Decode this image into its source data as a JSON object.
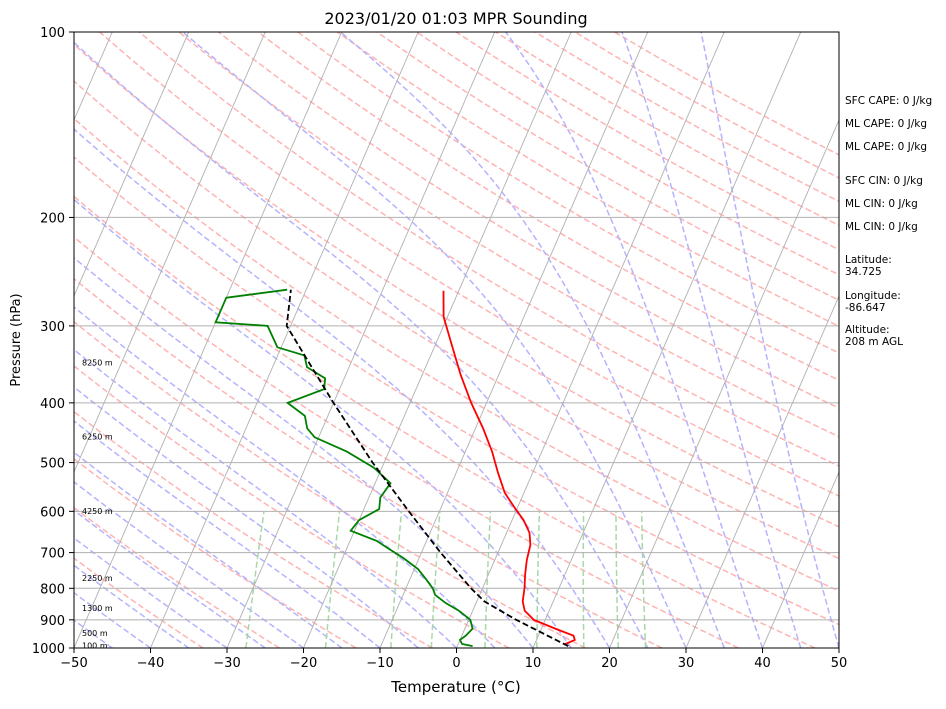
{
  "chart_data": {
    "type": "skew-t",
    "title": "2023/01/20 01:03 MPR Sounding",
    "xlabel": "Temperature (°C)",
    "ylabel": "Pressure (hPa)",
    "xlim": [
      -50,
      50
    ],
    "ylim": [
      1000,
      100
    ],
    "y_scale": "log",
    "grid": true,
    "x_ticks": [
      "−50",
      "−40",
      "−30",
      "−20",
      "−10",
      "0",
      "10",
      "20",
      "30",
      "40",
      "50"
    ],
    "x_tick_values": [
      -50,
      -40,
      -30,
      -20,
      -10,
      0,
      10,
      20,
      30,
      40,
      50
    ],
    "y_ticks": [
      "100",
      "200",
      "300",
      "400",
      "500",
      "600",
      "700",
      "800",
      "900",
      "1000"
    ],
    "y_tick_values": [
      100,
      200,
      300,
      400,
      500,
      600,
      700,
      800,
      900,
      1000
    ],
    "background_lines": {
      "isotherms_color": "#b0b0b0",
      "dry_adiabats_color": "#ffb3b3",
      "moist_adiabats_color": "#b3b3ff",
      "mixing_ratio_color": "#a8d8a8"
    },
    "series": [
      {
        "color": "#ff0000",
        "points": [
          {
            "p": 993,
            "t": 14.5
          },
          {
            "p": 985,
            "t": 14.0
          },
          {
            "p": 970,
            "t": 15.0
          },
          {
            "p": 955,
            "t": 14.6
          },
          {
            "p": 930,
            "t": 11.8
          },
          {
            "p": 900,
            "t": 8.5
          },
          {
            "p": 870,
            "t": 6.8
          },
          {
            "p": 840,
            "t": 6.0
          },
          {
            "p": 800,
            "t": 5.5
          },
          {
            "p": 760,
            "t": 4.8
          },
          {
            "p": 720,
            "t": 4.2
          },
          {
            "p": 680,
            "t": 3.8
          },
          {
            "p": 650,
            "t": 3.0
          },
          {
            "p": 620,
            "t": 1.5
          },
          {
            "p": 590,
            "t": -0.5
          },
          {
            "p": 560,
            "t": -2.5
          },
          {
            "p": 520,
            "t": -4.5
          },
          {
            "p": 480,
            "t": -6.5
          },
          {
            "p": 440,
            "t": -9.0
          },
          {
            "p": 400,
            "t": -12.0
          },
          {
            "p": 360,
            "t": -15.0
          },
          {
            "p": 320,
            "t": -18.0
          },
          {
            "p": 290,
            "t": -20.5
          },
          {
            "p": 263,
            "t": -22.0
          }
        ]
      },
      {
        "color": "#008000",
        "points": [
          {
            "p": 993,
            "t": 2.0
          },
          {
            "p": 985,
            "t": 0.5
          },
          {
            "p": 970,
            "t": 0.0
          },
          {
            "p": 955,
            "t": 0.5
          },
          {
            "p": 930,
            "t": 1.0
          },
          {
            "p": 900,
            "t": 0.2
          },
          {
            "p": 870,
            "t": -1.8
          },
          {
            "p": 845,
            "t": -4.0
          },
          {
            "p": 820,
            "t": -5.8
          },
          {
            "p": 800,
            "t": -6.5
          },
          {
            "p": 775,
            "t": -7.8
          },
          {
            "p": 745,
            "t": -9.5
          },
          {
            "p": 715,
            "t": -12.0
          },
          {
            "p": 690,
            "t": -14.5
          },
          {
            "p": 670,
            "t": -16.5
          },
          {
            "p": 645,
            "t": -20.5
          },
          {
            "p": 620,
            "t": -20.0
          },
          {
            "p": 595,
            "t": -18.0
          },
          {
            "p": 570,
            "t": -18.5
          },
          {
            "p": 540,
            "t": -18.0
          },
          {
            "p": 510,
            "t": -21.0
          },
          {
            "p": 480,
            "t": -25.5
          },
          {
            "p": 455,
            "t": -30.5
          },
          {
            "p": 440,
            "t": -32.0
          },
          {
            "p": 420,
            "t": -33.0
          },
          {
            "p": 400,
            "t": -36.0
          },
          {
            "p": 380,
            "t": -32.0
          },
          {
            "p": 365,
            "t": -32.5
          },
          {
            "p": 350,
            "t": -35.5
          },
          {
            "p": 335,
            "t": -36.5
          },
          {
            "p": 325,
            "t": -40.5
          },
          {
            "p": 300,
            "t": -43.0
          },
          {
            "p": 296,
            "t": -50.0
          },
          {
            "p": 270,
            "t": -50.0
          },
          {
            "p": 262,
            "t": -42.5
          }
        ]
      },
      {
        "color": "#000000",
        "dashed": true,
        "points": [
          {
            "p": 993,
            "t": 14.5
          },
          {
            "p": 900,
            "t": 6.2
          },
          {
            "p": 840,
            "t": 1.0
          },
          {
            "p": 800,
            "t": -1.5
          },
          {
            "p": 700,
            "t": -7.5
          },
          {
            "p": 600,
            "t": -14.0
          },
          {
            "p": 500,
            "t": -21.5
          },
          {
            "p": 400,
            "t": -30.0
          },
          {
            "p": 300,
            "t": -40.5
          },
          {
            "p": 262,
            "t": -42.0
          }
        ]
      }
    ],
    "height_labels": [
      {
        "text": "100 m",
        "p": 994
      },
      {
        "text": "500 m",
        "p": 949
      },
      {
        "text": "1300 m",
        "p": 864
      },
      {
        "text": "2250 m",
        "p": 772
      },
      {
        "text": "4250 m",
        "p": 602
      },
      {
        "text": "6250 m",
        "p": 455
      },
      {
        "text": "8250 m",
        "p": 345
      }
    ],
    "info_panel": [
      "SFC CAPE: 0 J/kg",
      "ML CAPE: 0 J/kg",
      "ML CAPE: 0 J/kg",
      "SFC CIN: 0 J/kg",
      "ML CIN: 0 J/kg",
      "ML CIN: 0 J/kg",
      "Latitude:",
      "34.725",
      "Longitude:",
      "-86.647",
      "Altitude:",
      "208 m AGL"
    ]
  }
}
